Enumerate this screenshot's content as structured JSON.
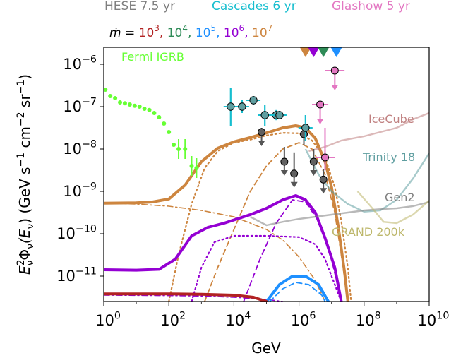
{
  "chart_data": {
    "type": "line",
    "xlabel": "GeV",
    "ylabel_parts": {
      "base": "E",
      "sub": "ν",
      "sup": "2",
      "phi": "Φ",
      "arg": "(E",
      "arg_sub": "ν",
      "close": ")",
      "units": " (GeV s",
      "u1": "−1",
      "cm": " cm",
      "u2": "−2",
      "sr": " sr",
      "u3": "−1",
      "end": ")"
    },
    "x_log_range": [
      0,
      10
    ],
    "y_log_range": [
      -11.6,
      -5.6
    ],
    "x_ticks": [
      {
        "exp": 0,
        "base": "10",
        "sup": "0"
      },
      {
        "exp": 2,
        "base": "10",
        "sup": "2"
      },
      {
        "exp": 4,
        "base": "10",
        "sup": "4"
      },
      {
        "exp": 6,
        "base": "10",
        "sup": "6"
      },
      {
        "exp": 8,
        "base": "10",
        "sup": "8"
      },
      {
        "exp": 10,
        "base": "10",
        "sup": "10"
      }
    ],
    "y_ticks": [
      {
        "exp": -6,
        "base": "10",
        "sup": "−6"
      },
      {
        "exp": -7,
        "base": "10",
        "sup": "−7"
      },
      {
        "exp": -8,
        "base": "10",
        "sup": "−8"
      },
      {
        "exp": -9,
        "base": "10",
        "sup": "−9"
      },
      {
        "exp": -10,
        "base": "10",
        "sup": "−10"
      },
      {
        "exp": -11,
        "base": "10",
        "sup": "−11"
      }
    ],
    "header_labels": [
      {
        "text": "HESE 7.5 yr",
        "color": "#7f7f7f"
      },
      {
        "text": "Cascades 6 yr",
        "color": "#17becf"
      },
      {
        "text": "Glashow 5 yr",
        "color": "#e377c2"
      }
    ],
    "mdot_legend": {
      "prefix": "ṁ = ",
      "entries": [
        {
          "base": "10",
          "sup": "3",
          "color": "#b22222",
          "sep": ", "
        },
        {
          "base": "10",
          "sup": "4",
          "color": "#2e8b57",
          "sep": ", "
        },
        {
          "base": "10",
          "sup": "5",
          "color": "#1e90ff",
          "sep": ", "
        },
        {
          "base": "10",
          "sup": "6",
          "color": "#9400d3",
          "sep": ", "
        },
        {
          "base": "10",
          "sup": "7",
          "color": "#cd853f",
          "sep": ""
        }
      ]
    },
    "annotations": [
      {
        "text": "Fermi IGRB",
        "color": "#66ff33"
      },
      {
        "text": "IceCube",
        "color": "#c08080"
      },
      {
        "text": "Trinity 18",
        "color": "#5f9ea0"
      },
      {
        "text": "Gen2",
        "color": "#808080"
      },
      {
        "text": "GRAND 200k",
        "color": "#bdb76b"
      }
    ],
    "model_curves": [
      {
        "mdot_exp": 7,
        "color": "#cd853f",
        "style": "total",
        "points": [
          [
            0,
            -9.28
          ],
          [
            1,
            -9.27
          ],
          [
            1.5,
            -9.25
          ],
          [
            2,
            -9.18
          ],
          [
            2.5,
            -8.85
          ],
          [
            3,
            -8.3
          ],
          [
            3.5,
            -7.98
          ],
          [
            4,
            -7.83
          ],
          [
            4.5,
            -7.73
          ],
          [
            5,
            -7.62
          ],
          [
            5.5,
            -7.5
          ],
          [
            5.9,
            -7.45
          ],
          [
            6.2,
            -7.5
          ],
          [
            6.5,
            -7.75
          ],
          [
            6.8,
            -8.3
          ],
          [
            7,
            -8.9
          ],
          [
            7.2,
            -9.8
          ],
          [
            7.4,
            -10.9
          ],
          [
            7.5,
            -11.6
          ]
        ]
      },
      {
        "mdot_exp": 7,
        "color": "#cd853f",
        "style": "dotted",
        "points": [
          [
            2,
            -11.6
          ],
          [
            2.3,
            -10.5
          ],
          [
            2.7,
            -9.3
          ],
          [
            3.1,
            -8.45
          ],
          [
            3.5,
            -8.05
          ],
          [
            4,
            -7.85
          ],
          [
            4.5,
            -7.78
          ],
          [
            5,
            -7.68
          ],
          [
            5.5,
            -7.62
          ],
          [
            6,
            -7.63
          ],
          [
            6.4,
            -7.8
          ],
          [
            6.8,
            -8.2
          ],
          [
            7.1,
            -8.9
          ],
          [
            7.3,
            -9.7
          ],
          [
            7.5,
            -10.8
          ],
          [
            7.6,
            -11.6
          ]
        ]
      },
      {
        "mdot_exp": 7,
        "color": "#cd853f",
        "style": "dashed",
        "points": [
          [
            3.1,
            -11.6
          ],
          [
            3.5,
            -10.8
          ],
          [
            4,
            -9.9
          ],
          [
            4.5,
            -9.0
          ],
          [
            5,
            -8.4
          ],
          [
            5.5,
            -8.0
          ],
          [
            6,
            -7.85
          ],
          [
            6.4,
            -8.0
          ],
          [
            6.8,
            -8.6
          ],
          [
            7.1,
            -9.5
          ],
          [
            7.3,
            -10.5
          ],
          [
            7.5,
            -11.6
          ]
        ]
      },
      {
        "mdot_exp": 7,
        "color": "#cd853f",
        "style": "dashdot",
        "points": [
          [
            0,
            -9.28
          ],
          [
            1,
            -9.3
          ],
          [
            2,
            -9.35
          ],
          [
            3,
            -9.45
          ],
          [
            4,
            -9.6
          ],
          [
            5,
            -9.9
          ],
          [
            5.5,
            -10.15
          ],
          [
            6,
            -10.55
          ],
          [
            6.5,
            -11.1
          ],
          [
            6.8,
            -11.6
          ]
        ]
      },
      {
        "mdot_exp": 6,
        "color": "#9400d3",
        "style": "total",
        "points": [
          [
            0,
            -10.85
          ],
          [
            1,
            -10.86
          ],
          [
            1.7,
            -10.84
          ],
          [
            2.2,
            -10.6
          ],
          [
            2.7,
            -10.05
          ],
          [
            3.2,
            -9.85
          ],
          [
            3.7,
            -9.75
          ],
          [
            4.5,
            -9.55
          ],
          [
            5,
            -9.4
          ],
          [
            5.5,
            -9.2
          ],
          [
            5.9,
            -9.1
          ],
          [
            6.2,
            -9.2
          ],
          [
            6.5,
            -9.5
          ],
          [
            6.8,
            -10.1
          ],
          [
            7.1,
            -10.8
          ],
          [
            7.3,
            -11.6
          ]
        ]
      },
      {
        "mdot_exp": 6,
        "color": "#9400d3",
        "style": "dotted",
        "points": [
          [
            2.7,
            -11.6
          ],
          [
            3.0,
            -10.8
          ],
          [
            3.4,
            -10.2
          ],
          [
            4,
            -10.05
          ],
          [
            5,
            -10.05
          ],
          [
            6,
            -10.08
          ],
          [
            6.5,
            -10.25
          ],
          [
            6.8,
            -10.6
          ],
          [
            7.1,
            -11.2
          ],
          [
            7.3,
            -11.6
          ]
        ]
      },
      {
        "mdot_exp": 6,
        "color": "#9400d3",
        "style": "dashed",
        "points": [
          [
            4.3,
            -11.6
          ],
          [
            4.8,
            -10.6
          ],
          [
            5.3,
            -9.75
          ],
          [
            5.8,
            -9.2
          ],
          [
            6.2,
            -9.25
          ],
          [
            6.6,
            -9.7
          ],
          [
            7,
            -10.6
          ],
          [
            7.3,
            -11.6
          ]
        ]
      },
      {
        "mdot_exp": 6,
        "color": "#9400d3",
        "style": "dashdot",
        "points": [
          [
            0,
            -11.45
          ],
          [
            2,
            -11.46
          ],
          [
            3,
            -11.47
          ],
          [
            4,
            -11.5
          ],
          [
            5,
            -11.55
          ],
          [
            5.5,
            -11.6
          ]
        ]
      },
      {
        "mdot_exp": 5,
        "color": "#1e90ff",
        "style": "total",
        "points": [
          [
            5.0,
            -11.6
          ],
          [
            5.4,
            -11.2
          ],
          [
            5.8,
            -11.0
          ],
          [
            6.2,
            -11.0
          ],
          [
            6.6,
            -11.2
          ],
          [
            6.9,
            -11.6
          ]
        ]
      },
      {
        "mdot_exp": 5,
        "color": "#1e90ff",
        "style": "dashed",
        "points": [
          [
            5.1,
            -11.6
          ],
          [
            5.5,
            -11.3
          ],
          [
            5.9,
            -11.15
          ],
          [
            6.3,
            -11.2
          ],
          [
            6.7,
            -11.45
          ],
          [
            6.8,
            -11.6
          ]
        ]
      },
      {
        "mdot_exp": 3,
        "color": "#b22222",
        "style": "total",
        "points": [
          [
            0,
            -11.42
          ],
          [
            2,
            -11.42
          ],
          [
            3,
            -11.43
          ],
          [
            4,
            -11.45
          ],
          [
            4.6,
            -11.5
          ],
          [
            5,
            -11.6
          ]
        ]
      }
    ],
    "sensitivity_curves": [
      {
        "name": "IceCube",
        "color": "#c08080",
        "points": [
          [
            6.3,
            -8.05
          ],
          [
            6.8,
            -7.95
          ],
          [
            7.3,
            -7.8
          ],
          [
            8,
            -7.7
          ],
          [
            8.5,
            -7.6
          ],
          [
            9,
            -7.5
          ],
          [
            9.5,
            -7.3
          ],
          [
            10,
            -7.15
          ]
        ]
      },
      {
        "name": "Trinity 18",
        "color": "#5f9ea0",
        "points": [
          [
            6.2,
            -8.0
          ],
          [
            6.6,
            -8.6
          ],
          [
            7,
            -9.0
          ],
          [
            7.5,
            -9.3
          ],
          [
            8,
            -9.48
          ],
          [
            8.5,
            -9.45
          ],
          [
            9,
            -9.2
          ],
          [
            9.5,
            -8.7
          ],
          [
            10,
            -8.1
          ]
        ]
      },
      {
        "name": "Gen2",
        "color": "#808080",
        "points": [
          [
            4.5,
            -9.6
          ],
          [
            5,
            -9.8
          ],
          [
            5.5,
            -9.72
          ],
          [
            6,
            -9.65
          ],
          [
            6.5,
            -9.6
          ],
          [
            7,
            -9.55
          ],
          [
            7.5,
            -9.5
          ],
          [
            8,
            -9.45
          ],
          [
            8.5,
            -9.42
          ],
          [
            9,
            -9.4
          ],
          [
            9.5,
            -9.35
          ],
          [
            10,
            -9.25
          ]
        ]
      },
      {
        "name": "GRAND 200k",
        "color": "#bdb76b",
        "points": [
          [
            7.8,
            -9.0
          ],
          [
            8.2,
            -9.35
          ],
          [
            8.6,
            -9.72
          ],
          [
            9,
            -9.75
          ],
          [
            9.5,
            -9.55
          ],
          [
            10,
            -9.22
          ]
        ]
      }
    ],
    "fermi_igrb_points": [
      [
        0.05,
        -6.6
      ],
      [
        0.2,
        -6.75
      ],
      [
        0.35,
        -6.8
      ],
      [
        0.5,
        -6.9
      ],
      [
        0.65,
        -6.92
      ],
      [
        0.8,
        -6.95
      ],
      [
        0.95,
        -6.98
      ],
      [
        1.1,
        -7.0
      ],
      [
        1.25,
        -7.05
      ],
      [
        1.4,
        -7.08
      ],
      [
        1.55,
        -7.15
      ],
      [
        1.7,
        -7.25
      ],
      [
        1.85,
        -7.4
      ],
      [
        2.0,
        -7.6
      ],
      [
        2.15,
        -7.9
      ],
      [
        2.3,
        -8.0
      ],
      [
        2.5,
        -8.0
      ],
      [
        2.7,
        -8.4
      ],
      [
        2.85,
        -8.45
      ]
    ],
    "hese_points": [
      {
        "x": 4.85,
        "y": -7.6,
        "err_lo": 0.4,
        "err_hi": 0.1,
        "limit": true
      },
      {
        "x": 5.55,
        "y": -8.3,
        "err_lo": 0.35,
        "err_hi": 0.35,
        "limit": true
      },
      {
        "x": 5.85,
        "y": -8.58,
        "err_lo": 0.3,
        "err_hi": 0.5,
        "limit": true
      },
      {
        "x": 6.15,
        "y": -7.65,
        "err_lo": 0.25,
        "err_hi": 0.2,
        "limit": false
      },
      {
        "x": 6.45,
        "y": -8.3,
        "err_lo": 0.3,
        "err_hi": 0.3,
        "limit": true
      },
      {
        "x": 6.75,
        "y": -8.72,
        "err_lo": 0.25,
        "err_hi": 0.25,
        "limit": true
      }
    ],
    "cascade_points": [
      {
        "x": 3.9,
        "y": -7.0,
        "err": 0.45
      },
      {
        "x": 4.25,
        "y": -7.0,
        "err": 0.15
      },
      {
        "x": 4.6,
        "y": -6.85,
        "err": 0.1
      },
      {
        "x": 4.95,
        "y": -7.2,
        "err": 0.25
      },
      {
        "x": 5.3,
        "y": -7.2,
        "err": 0.12
      },
      {
        "x": 5.4,
        "y": -7.2,
        "err": 0.1
      },
      {
        "x": 6.2,
        "y": -7.5,
        "err": 0.3
      }
    ],
    "glashow_points": [
      {
        "x": 6.65,
        "y": -6.95,
        "xerr": 0.25,
        "arrow": true
      },
      {
        "x": 6.8,
        "y": -8.2,
        "xerr": 0.3,
        "arrow": false,
        "yerr_hi": 0.7,
        "yerr_lo": 0.3
      },
      {
        "x": 7.1,
        "y": -6.15,
        "xerr": 0.3,
        "arrow": true
      }
    ],
    "top_markers": [
      {
        "x": 6.2,
        "color": "#cd853f"
      },
      {
        "x": 6.45,
        "color": "#9400d3"
      },
      {
        "x": 6.75,
        "color": "#2e8b57"
      },
      {
        "x": 7.15,
        "color": "#1e90ff"
      }
    ],
    "grid": false
  }
}
